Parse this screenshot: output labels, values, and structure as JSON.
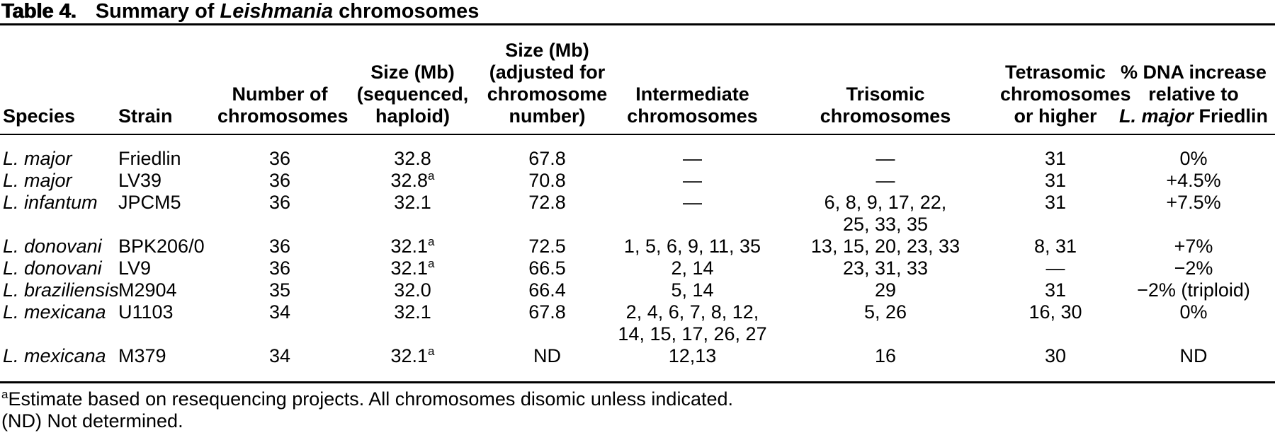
{
  "title": {
    "label": "Table 4.",
    "text": "Summary of *Leishmania* chromosomes"
  },
  "table": {
    "columns": [
      {
        "key": "species",
        "label": "Species",
        "align": "left"
      },
      {
        "key": "strain",
        "label": "Strain",
        "align": "left"
      },
      {
        "key": "chromosome_count",
        "label": "Number of\nchromosomes",
        "align": "center"
      },
      {
        "key": "size_sequenced",
        "label": "Size (Mb)\n(sequenced,\nhaploid)",
        "align": "center"
      },
      {
        "key": "size_adjusted",
        "label": "Size (Mb)\n(adjusted for\nchromosome\nnumber)",
        "align": "center"
      },
      {
        "key": "intermediate",
        "label": "Intermediate\nchromosomes",
        "align": "center"
      },
      {
        "key": "trisomic",
        "label": "Trisomic\nchromosomes",
        "align": "center"
      },
      {
        "key": "tetrasomic",
        "label": "Tetrasomic\nchromosomes\nor higher",
        "align": "center"
      },
      {
        "key": "dna_increase",
        "label": "% DNA increase\nrelative to\n*L. major* Friedlin",
        "align": "center"
      }
    ],
    "rows": [
      {
        "species": "L. major",
        "strain": "Friedlin",
        "chromosome_count": "36",
        "size_sequenced": "32.8",
        "size_adjusted": "67.8",
        "intermediate": "—",
        "trisomic": "—",
        "tetrasomic": "31",
        "dna_increase": "0%"
      },
      {
        "species": "L. major",
        "strain": "LV39",
        "chromosome_count": "36",
        "size_sequenced": "32.8^a",
        "size_adjusted": "70.8",
        "intermediate": "—",
        "trisomic": "—",
        "tetrasomic": "31",
        "dna_increase": "+4.5%"
      },
      {
        "species": "L. infantum",
        "strain": "JPCM5",
        "chromosome_count": "36",
        "size_sequenced": "32.1",
        "size_adjusted": "72.8",
        "intermediate": "—",
        "trisomic": "6, 8, 9, 17, 22,\n25, 33, 35",
        "tetrasomic": "31",
        "dna_increase": "+7.5%"
      },
      {
        "species": "L. donovani",
        "strain": "BPK206/0",
        "chromosome_count": "36",
        "size_sequenced": "32.1^a",
        "size_adjusted": "72.5",
        "intermediate": "1, 5, 6, 9, 11, 35",
        "trisomic": "13, 15, 20, 23, 33",
        "tetrasomic": "8, 31",
        "dna_increase": "+7%"
      },
      {
        "species": "L. donovani",
        "strain": "LV9",
        "chromosome_count": "36",
        "size_sequenced": "32.1^a",
        "size_adjusted": "66.5",
        "intermediate": "2, 14",
        "trisomic": "23, 31, 33",
        "tetrasomic": "—",
        "dna_increase": "−2%"
      },
      {
        "species": "L. braziliensis",
        "strain": "M2904",
        "chromosome_count": "35",
        "size_sequenced": "32.0",
        "size_adjusted": "66.4",
        "intermediate": "5, 14",
        "trisomic": "29",
        "tetrasomic": "31",
        "dna_increase": "−2% (triploid)"
      },
      {
        "species": "L. mexicana",
        "strain": "U1103",
        "chromosome_count": "34",
        "size_sequenced": "32.1",
        "size_adjusted": "67.8",
        "intermediate": "2, 4, 6, 7, 8, 12,\n14, 15, 17, 26, 27",
        "trisomic": "5, 26",
        "tetrasomic": "16, 30",
        "dna_increase": "0%"
      },
      {
        "species": "L. mexicana",
        "strain": "M379",
        "chromosome_count": "34",
        "size_sequenced": "32.1^a",
        "size_adjusted": "ND",
        "intermediate": "12,13",
        "trisomic": "16",
        "tetrasomic": "30",
        "dna_increase": "ND"
      }
    ]
  },
  "footnotes": [
    "^aEstimate based on resequencing projects. All chromosomes disomic unless indicated.",
    "(ND) Not determined."
  ],
  "colors": {
    "text": "#000000",
    "background": "#ffffff",
    "rule": "#000000"
  }
}
